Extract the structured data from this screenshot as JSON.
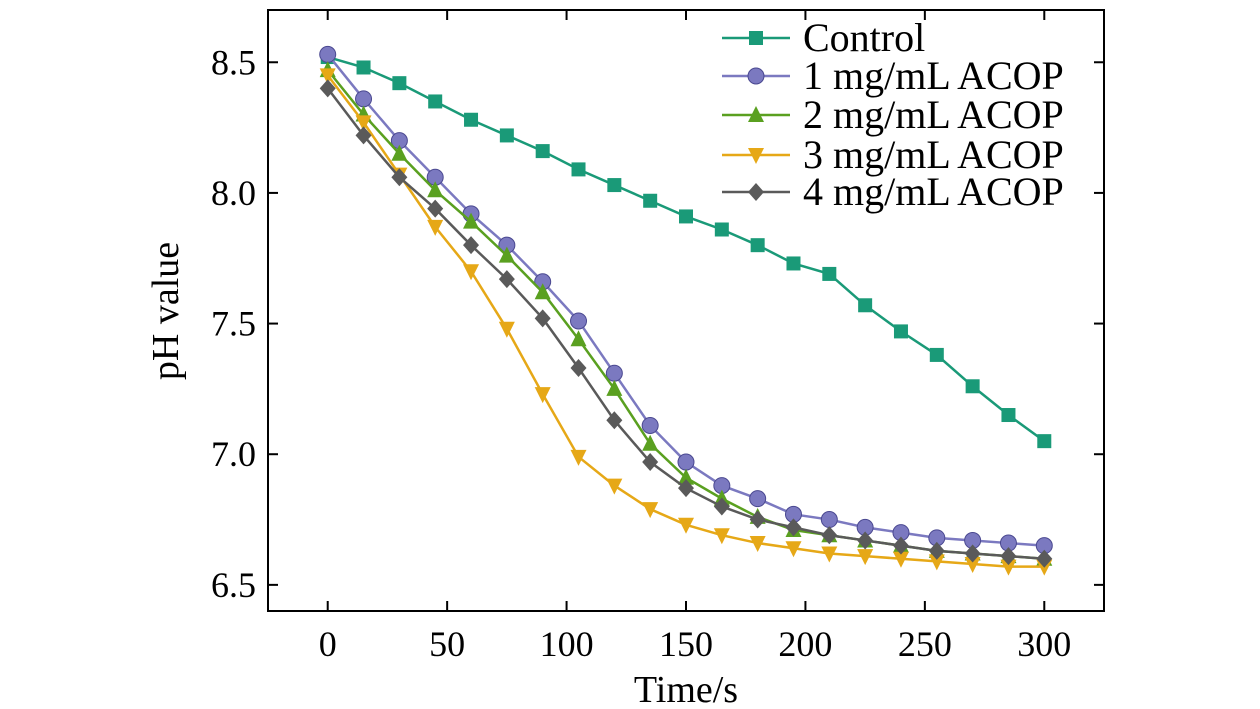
{
  "chart_data": {
    "type": "line",
    "title": "",
    "xlabel": "Time/s",
    "ylabel": "pH value",
    "xlim": [
      -25,
      325
    ],
    "ylim": [
      6.4,
      8.7
    ],
    "xticks": [
      0,
      50,
      100,
      150,
      200,
      250,
      300
    ],
    "yticks": [
      6.5,
      7.0,
      7.5,
      8.0,
      8.5
    ],
    "xtick_labels": [
      "0",
      "50",
      "100",
      "150",
      "200",
      "250",
      "300"
    ],
    "ytick_labels": [
      "6.5",
      "7.0",
      "7.5",
      "8.0",
      "8.5"
    ],
    "grid": false,
    "legend_position": "top-right",
    "x": [
      0,
      15,
      30,
      45,
      60,
      75,
      90,
      105,
      120,
      135,
      150,
      165,
      180,
      195,
      210,
      225,
      240,
      255,
      270,
      285,
      300
    ],
    "series": [
      {
        "name": "Control",
        "color": "#1a9a78",
        "marker": "square",
        "values": [
          8.52,
          8.48,
          8.42,
          8.35,
          8.28,
          8.22,
          8.16,
          8.09,
          8.03,
          7.97,
          7.91,
          7.86,
          7.8,
          7.73,
          7.69,
          7.57,
          7.47,
          7.38,
          7.26,
          7.15,
          7.05
        ]
      },
      {
        "name": "1 mg/mL ACOP",
        "color": "#7b79c0",
        "marker": "circle",
        "values": [
          8.53,
          8.36,
          8.2,
          8.06,
          7.92,
          7.8,
          7.66,
          7.51,
          7.31,
          7.11,
          6.97,
          6.88,
          6.83,
          6.77,
          6.75,
          6.72,
          6.7,
          6.68,
          6.67,
          6.66,
          6.65
        ]
      },
      {
        "name": "2 mg/mL ACOP",
        "color": "#5aa020",
        "marker": "triangle-up",
        "values": [
          8.47,
          8.3,
          8.15,
          8.01,
          7.89,
          7.76,
          7.62,
          7.44,
          7.25,
          7.04,
          6.91,
          6.83,
          6.76,
          6.71,
          6.69,
          6.67,
          6.65,
          6.63,
          6.62,
          6.61,
          6.6
        ]
      },
      {
        "name": "3 mg/mL ACOP",
        "color": "#e6a817",
        "marker": "triangle-down",
        "values": [
          8.45,
          8.27,
          8.07,
          7.87,
          7.7,
          7.48,
          7.23,
          6.99,
          6.88,
          6.79,
          6.73,
          6.69,
          6.66,
          6.64,
          6.62,
          6.61,
          6.6,
          6.59,
          6.58,
          6.57,
          6.57
        ]
      },
      {
        "name": "4 mg/mL ACOP",
        "color": "#5a5a5a",
        "marker": "diamond",
        "values": [
          8.4,
          8.22,
          8.06,
          7.94,
          7.8,
          7.67,
          7.52,
          7.33,
          7.13,
          6.97,
          6.87,
          6.8,
          6.75,
          6.72,
          6.69,
          6.67,
          6.65,
          6.63,
          6.62,
          6.61,
          6.6
        ]
      }
    ]
  }
}
